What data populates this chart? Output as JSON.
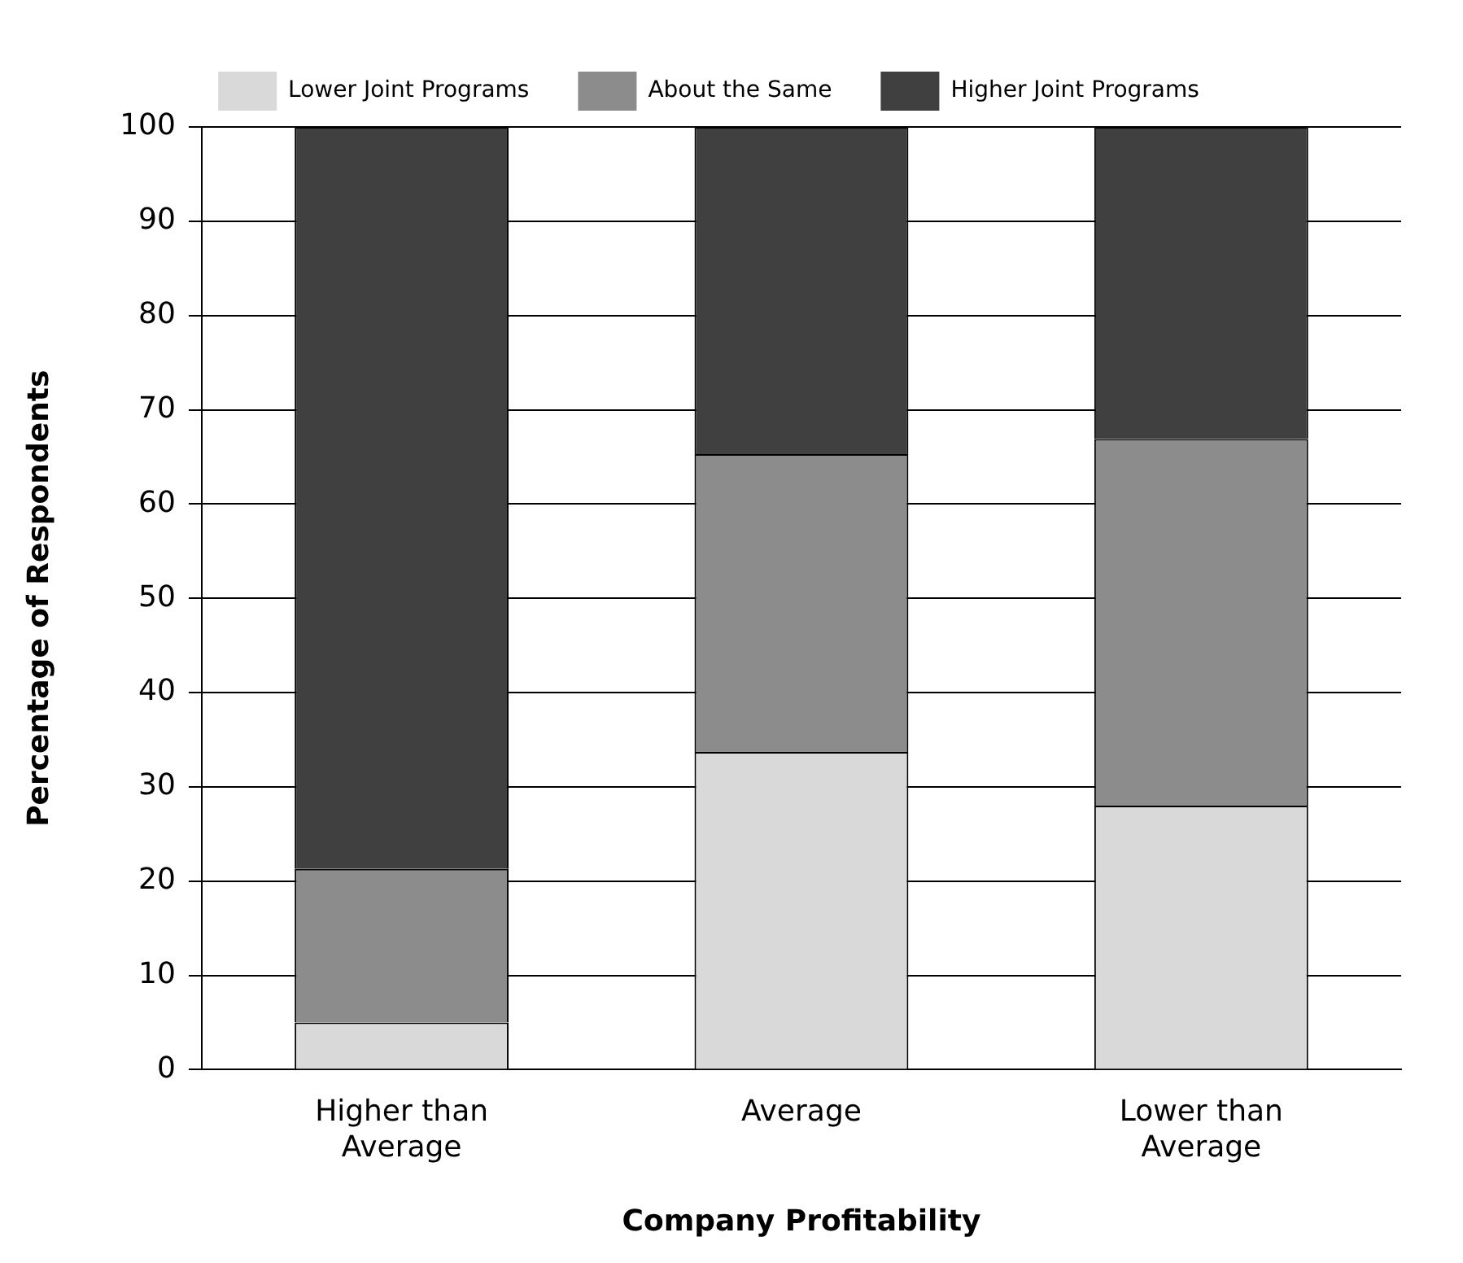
{
  "chart_data": {
    "type": "bar",
    "stacked": true,
    "xlabel": "Company Profitability",
    "ylabel": "Percentage of Respondents",
    "categories": [
      [
        "Higher than",
        "Average"
      ],
      "Average",
      [
        "Lower than",
        "Average"
      ]
    ],
    "series": [
      {
        "name": "Lower Joint Programs",
        "color": "#d9d9d9",
        "values": [
          5,
          33.7,
          28
        ]
      },
      {
        "name": "About the Same",
        "color": "#8c8c8c",
        "values": [
          16.3,
          31.6,
          38.9
        ]
      },
      {
        "name": "Higher Joint Programs",
        "color": "#404040",
        "values": [
          78.7,
          34.7,
          33.1
        ]
      }
    ],
    "ylim": [
      0,
      100
    ],
    "yticks": [
      0,
      10,
      20,
      30,
      40,
      50,
      60,
      70,
      80,
      90,
      100
    ],
    "grid": "y",
    "legend": "top"
  }
}
